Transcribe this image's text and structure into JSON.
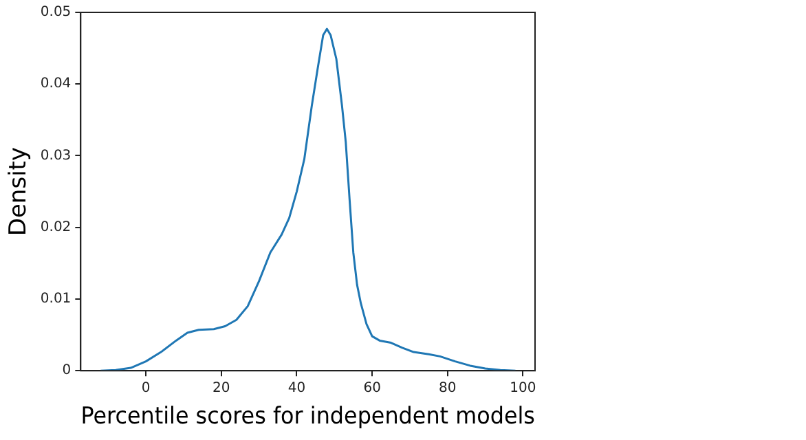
{
  "chart_data": {
    "type": "line",
    "xlabel": "Percentile scores for independent models",
    "ylabel": "Density",
    "xlim": [
      -17.3,
      103.2
    ],
    "xticks": [
      0,
      20,
      40,
      60,
      80,
      100
    ],
    "ylim": [
      0,
      0.05
    ],
    "yticks": [
      0,
      0.01,
      0.02,
      0.03,
      0.04,
      0.05
    ],
    "marker": "none",
    "line_style": "solid",
    "series": [
      {
        "color": "#1f77b4",
        "x": [
          -12,
          -8,
          -4,
          0,
          4,
          8,
          11,
          14,
          18,
          21,
          24,
          27,
          30,
          33,
          36,
          38,
          40,
          42,
          44,
          45.5,
          47,
          48,
          49,
          50.5,
          52,
          53,
          54,
          55,
          56,
          57,
          58.5,
          60,
          62,
          65,
          68,
          71,
          75,
          78,
          82,
          86,
          90,
          94,
          98
        ],
        "values": [
          0,
          0.0001,
          0.0004,
          0.0013,
          0.0026,
          0.0042,
          0.0053,
          0.0057,
          0.0058,
          0.0062,
          0.0071,
          0.009,
          0.0125,
          0.0165,
          0.019,
          0.0213,
          0.025,
          0.0295,
          0.037,
          0.042,
          0.0468,
          0.0477,
          0.0468,
          0.0435,
          0.037,
          0.0319,
          0.024,
          0.0165,
          0.012,
          0.0094,
          0.0065,
          0.0048,
          0.0042,
          0.0039,
          0.0032,
          0.0026,
          0.0023,
          0.002,
          0.0013,
          0.0007,
          0.0003,
          0.0001,
          0
        ]
      }
    ]
  }
}
